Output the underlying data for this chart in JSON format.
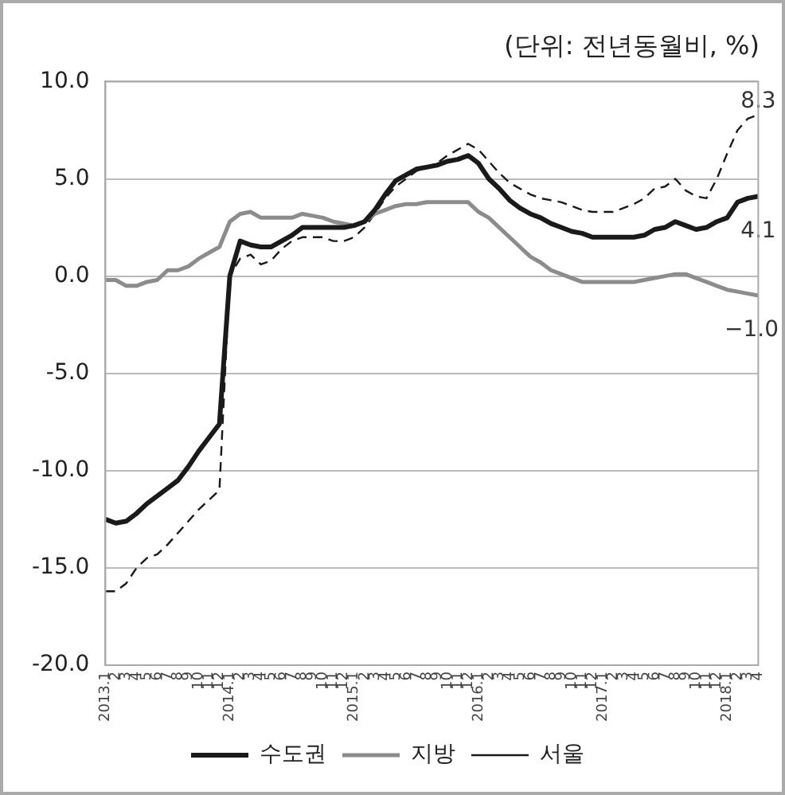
{
  "chart_data": {
    "type": "line",
    "subtitle": "(단위: 전년동월비, %)",
    "categories": [
      "2013.1",
      "2",
      "3",
      "4",
      "5",
      "6",
      "7",
      "8",
      "9",
      "10",
      "11",
      "12",
      "2014.1",
      "2",
      "3",
      "4",
      "5",
      "6",
      "7",
      "8",
      "9",
      "10",
      "11",
      "12",
      "2015.1",
      "2",
      "3",
      "4",
      "5",
      "6",
      "7",
      "8",
      "9",
      "10",
      "11",
      "12",
      "2016.1",
      "2",
      "3",
      "4",
      "5",
      "6",
      "7",
      "8",
      "9",
      "10",
      "11",
      "12",
      "2017.1",
      "2",
      "3",
      "4",
      "5",
      "6",
      "7",
      "8",
      "9",
      "10",
      "11",
      "12",
      "2018.1",
      "2",
      "3",
      "4"
    ],
    "series": [
      {
        "name": "수도권",
        "color": "#1a1a1a",
        "line_style": "solid",
        "values": [
          -12.5,
          -12.7,
          -12.6,
          -12.2,
          -11.7,
          -11.3,
          -10.9,
          -10.5,
          -9.8,
          -9.0,
          -8.3,
          -7.6,
          0.0,
          1.8,
          1.6,
          1.5,
          1.5,
          1.8,
          2.1,
          2.5,
          2.5,
          2.5,
          2.5,
          2.5,
          2.6,
          2.8,
          3.4,
          4.2,
          4.9,
          5.2,
          5.5,
          5.6,
          5.7,
          5.9,
          6.0,
          6.2,
          5.8,
          5.0,
          4.5,
          3.9,
          3.5,
          3.2,
          3.0,
          2.7,
          2.5,
          2.3,
          2.2,
          2.0,
          2.0,
          2.0,
          2.0,
          2.0,
          2.1,
          2.4,
          2.5,
          2.8,
          2.6,
          2.4,
          2.5,
          2.8,
          3.0,
          3.8,
          4.0,
          4.1
        ],
        "value_labels": [
          null,
          null,
          null,
          null,
          null,
          null,
          null,
          null,
          null,
          null,
          null,
          null,
          null,
          null,
          null,
          null,
          null,
          null,
          null,
          null,
          null,
          null,
          null,
          null,
          null,
          null,
          null,
          null,
          null,
          null,
          null,
          null,
          null,
          null,
          null,
          null,
          null,
          null,
          null,
          null,
          null,
          null,
          null,
          null,
          null,
          null,
          null,
          null,
          null,
          null,
          null,
          null,
          null,
          null,
          null,
          null,
          null,
          null,
          null,
          null,
          null,
          null,
          null,
          "4.1"
        ]
      },
      {
        "name": "지방",
        "color": "#8c8c8c",
        "line_style": "solid",
        "values": [
          -0.2,
          -0.2,
          -0.5,
          -0.5,
          -0.3,
          -0.2,
          0.3,
          0.3,
          0.5,
          0.9,
          1.2,
          1.5,
          2.8,
          3.2,
          3.3,
          3.0,
          3.0,
          3.0,
          3.0,
          3.2,
          3.1,
          3.0,
          2.8,
          2.7,
          2.6,
          2.8,
          3.2,
          3.4,
          3.6,
          3.7,
          3.7,
          3.8,
          3.8,
          3.8,
          3.8,
          3.8,
          3.3,
          3.0,
          2.5,
          2.0,
          1.5,
          1.0,
          0.7,
          0.3,
          0.1,
          -0.1,
          -0.3,
          -0.3,
          -0.3,
          -0.3,
          -0.3,
          -0.3,
          -0.2,
          -0.1,
          0.0,
          0.1,
          0.1,
          -0.1,
          -0.3,
          -0.5,
          -0.7,
          -0.8,
          -0.9,
          -1.0
        ],
        "value_labels": [
          null,
          null,
          null,
          null,
          null,
          null,
          null,
          null,
          null,
          null,
          null,
          null,
          null,
          null,
          null,
          null,
          null,
          null,
          null,
          null,
          null,
          null,
          null,
          null,
          null,
          null,
          null,
          null,
          null,
          null,
          null,
          null,
          null,
          null,
          null,
          null,
          null,
          null,
          null,
          null,
          null,
          null,
          null,
          null,
          null,
          null,
          null,
          null,
          null,
          null,
          null,
          null,
          null,
          null,
          null,
          null,
          null,
          null,
          null,
          null,
          null,
          null,
          null,
          "−1.0"
        ]
      },
      {
        "name": "서울",
        "color": "#1a1a1a",
        "line_style": "dashed",
        "values": [
          -16.2,
          -16.2,
          -15.8,
          -15.0,
          -14.5,
          -14.3,
          -13.8,
          -13.2,
          -12.6,
          -12.0,
          -11.5,
          -11.0,
          0.0,
          0.9,
          1.1,
          0.6,
          0.8,
          1.4,
          1.8,
          2.0,
          2.0,
          2.0,
          1.8,
          1.8,
          2.0,
          2.5,
          3.2,
          4.0,
          4.6,
          5.0,
          5.4,
          5.6,
          5.8,
          6.2,
          6.5,
          6.8,
          6.5,
          5.9,
          5.3,
          4.8,
          4.5,
          4.2,
          4.0,
          3.9,
          3.8,
          3.6,
          3.4,
          3.3,
          3.3,
          3.3,
          3.5,
          3.7,
          4.0,
          4.5,
          4.6,
          5.0,
          4.4,
          4.1,
          4.0,
          5.0,
          6.3,
          7.5,
          8.1,
          8.3
        ],
        "value_labels": [
          null,
          null,
          null,
          null,
          null,
          null,
          null,
          null,
          null,
          null,
          null,
          null,
          null,
          null,
          null,
          null,
          null,
          null,
          null,
          null,
          null,
          null,
          null,
          null,
          null,
          null,
          null,
          null,
          null,
          null,
          null,
          null,
          null,
          null,
          null,
          null,
          null,
          null,
          null,
          null,
          null,
          null,
          null,
          null,
          null,
          null,
          null,
          null,
          null,
          null,
          null,
          null,
          null,
          null,
          null,
          null,
          null,
          null,
          null,
          null,
          null,
          null,
          null,
          "8.3"
        ]
      }
    ],
    "ylim": [
      -20,
      10
    ],
    "yticks": [
      {
        "value": -20,
        "label": "-20.0"
      },
      {
        "value": -15,
        "label": "-15.0"
      },
      {
        "value": -10,
        "label": "-10.0"
      },
      {
        "value": -5,
        "label": "-5.0"
      },
      {
        "value": 0,
        "label": "0.0"
      },
      {
        "value": 5,
        "label": "5.0"
      },
      {
        "value": 10,
        "label": "10.0"
      }
    ],
    "grid": "y",
    "legend": "bottom",
    "marker": "none"
  }
}
